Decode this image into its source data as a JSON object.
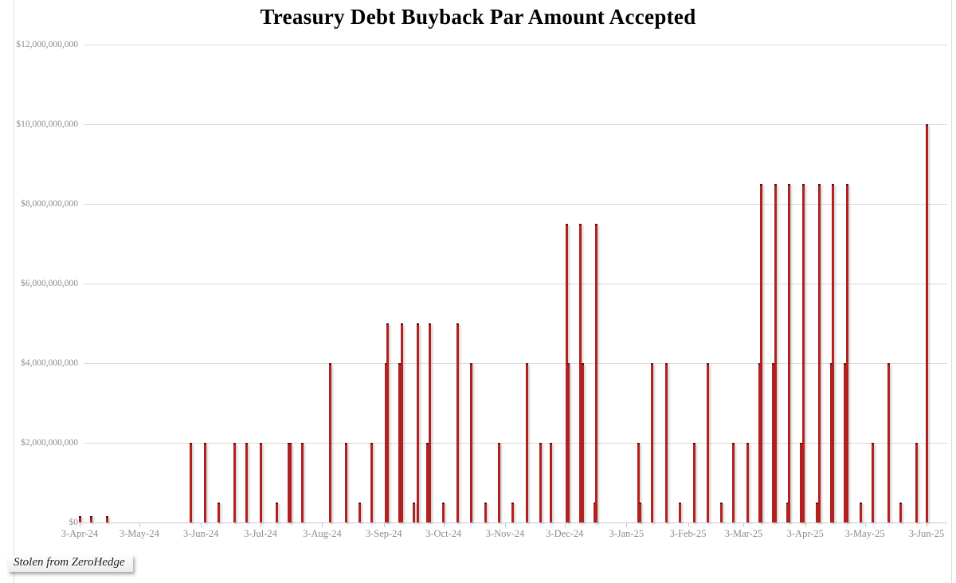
{
  "title": "Treasury Debt Buyback Par Amount Accepted",
  "watermark": {
    "text": "Stolen from ZeroHedge"
  },
  "chart_data": {
    "type": "bar",
    "title": "Treasury Debt Buyback Par Amount Accepted",
    "xlabel": "",
    "ylabel": "",
    "unit": "USD",
    "point_value_unit": "billions_usd",
    "ylim": [
      0,
      12000000000
    ],
    "ytick_interval": 2000000000,
    "grid": true,
    "legend_position": "none",
    "colors": {
      "bar_fill": "#B2201F",
      "bar_cap": "#5C0E10",
      "grid": "#D9D9D9",
      "axis_text": "#8C8C8C",
      "title_text": "#000000"
    },
    "ytick_labels": [
      "$12,000,000,000",
      "$10,000,000,000",
      "$8,000,000,000",
      "$6,000,000,000",
      "$4,000,000,000",
      "$2,000,000,000",
      "$0"
    ],
    "xticks": [
      {
        "label": "3-Apr-24",
        "date": "2024-04-03"
      },
      {
        "label": "3-May-24",
        "date": "2024-05-03"
      },
      {
        "label": "3-Jun-24",
        "date": "2024-06-03"
      },
      {
        "label": "3-Jul-24",
        "date": "2024-07-03"
      },
      {
        "label": "3-Aug-24",
        "date": "2024-08-03"
      },
      {
        "label": "3-Sep-24",
        "date": "2024-09-03"
      },
      {
        "label": "3-Oct-24",
        "date": "2024-10-03"
      },
      {
        "label": "3-Nov-24",
        "date": "2024-11-03"
      },
      {
        "label": "3-Dec-24",
        "date": "2024-12-03"
      },
      {
        "label": "3-Jan-25",
        "date": "2025-01-03"
      },
      {
        "label": "3-Feb-25",
        "date": "2025-02-03"
      },
      {
        "label": "3-Mar-25",
        "date": "2025-03-03"
      },
      {
        "label": "3-Apr-25",
        "date": "2025-04-03"
      },
      {
        "label": "3-May-25",
        "date": "2025-05-03"
      },
      {
        "label": "3-Jun-25",
        "date": "2025-06-03"
      }
    ],
    "series": [
      {
        "name": "Par Amount Accepted",
        "points": [
          {
            "date": "2024-04-03",
            "value_billions": 0.15
          },
          {
            "date": "2024-04-09",
            "value_billions": 0.15
          },
          {
            "date": "2024-04-17",
            "value_billions": 0.15
          },
          {
            "date": "2024-05-29",
            "value_billions": 2
          },
          {
            "date": "2024-06-05",
            "value_billions": 2
          },
          {
            "date": "2024-06-12",
            "value_billions": 0.5
          },
          {
            "date": "2024-06-20",
            "value_billions": 2
          },
          {
            "date": "2024-06-26",
            "value_billions": 2
          },
          {
            "date": "2024-07-03",
            "value_billions": 2
          },
          {
            "date": "2024-07-11",
            "value_billions": 0.5
          },
          {
            "date": "2024-07-17",
            "value_billions": 2
          },
          {
            "date": "2024-07-18",
            "value_billions": 2
          },
          {
            "date": "2024-07-24",
            "value_billions": 2
          },
          {
            "date": "2024-08-07",
            "value_billions": 4
          },
          {
            "date": "2024-08-15",
            "value_billions": 2
          },
          {
            "date": "2024-08-22",
            "value_billions": 0.5
          },
          {
            "date": "2024-08-28",
            "value_billions": 2
          },
          {
            "date": "2024-09-04",
            "value_billions": 4
          },
          {
            "date": "2024-09-05",
            "value_billions": 5
          },
          {
            "date": "2024-09-11",
            "value_billions": 4
          },
          {
            "date": "2024-09-12",
            "value_billions": 5
          },
          {
            "date": "2024-09-18",
            "value_billions": 0.5
          },
          {
            "date": "2024-09-20",
            "value_billions": 5
          },
          {
            "date": "2024-09-25",
            "value_billions": 2
          },
          {
            "date": "2024-09-26",
            "value_billions": 5
          },
          {
            "date": "2024-10-03",
            "value_billions": 0.5
          },
          {
            "date": "2024-10-10",
            "value_billions": 5
          },
          {
            "date": "2024-10-17",
            "value_billions": 4
          },
          {
            "date": "2024-10-24",
            "value_billions": 0.5
          },
          {
            "date": "2024-10-31",
            "value_billions": 2
          },
          {
            "date": "2024-11-07",
            "value_billions": 0.5
          },
          {
            "date": "2024-11-14",
            "value_billions": 4
          },
          {
            "date": "2024-11-21",
            "value_billions": 2
          },
          {
            "date": "2024-11-26",
            "value_billions": 2
          },
          {
            "date": "2024-12-04",
            "value_billions": 7.5
          },
          {
            "date": "2024-12-05",
            "value_billions": 4
          },
          {
            "date": "2024-12-11",
            "value_billions": 7.5
          },
          {
            "date": "2024-12-12",
            "value_billions": 4
          },
          {
            "date": "2024-12-18",
            "value_billions": 0.5
          },
          {
            "date": "2024-12-19",
            "value_billions": 7.5
          },
          {
            "date": "2025-01-09",
            "value_billions": 2
          },
          {
            "date": "2025-01-10",
            "value_billions": 0.5
          },
          {
            "date": "2025-01-16",
            "value_billions": 4
          },
          {
            "date": "2025-01-23",
            "value_billions": 4
          },
          {
            "date": "2025-01-30",
            "value_billions": 0.5
          },
          {
            "date": "2025-02-06",
            "value_billions": 2
          },
          {
            "date": "2025-02-13",
            "value_billions": 4
          },
          {
            "date": "2025-02-20",
            "value_billions": 0.5
          },
          {
            "date": "2025-02-26",
            "value_billions": 2
          },
          {
            "date": "2025-03-05",
            "value_billions": 2
          },
          {
            "date": "2025-03-11",
            "value_billions": 4
          },
          {
            "date": "2025-03-12",
            "value_billions": 8.5
          },
          {
            "date": "2025-03-18",
            "value_billions": 4
          },
          {
            "date": "2025-03-19",
            "value_billions": 8.5
          },
          {
            "date": "2025-03-25",
            "value_billions": 0.5
          },
          {
            "date": "2025-03-26",
            "value_billions": 8.5
          },
          {
            "date": "2025-04-01",
            "value_billions": 2
          },
          {
            "date": "2025-04-02",
            "value_billions": 8.5
          },
          {
            "date": "2025-04-09",
            "value_billions": 0.5
          },
          {
            "date": "2025-04-10",
            "value_billions": 8.5
          },
          {
            "date": "2025-04-16",
            "value_billions": 4
          },
          {
            "date": "2025-04-17",
            "value_billions": 8.5
          },
          {
            "date": "2025-04-23",
            "value_billions": 4
          },
          {
            "date": "2025-04-24",
            "value_billions": 8.5
          },
          {
            "date": "2025-05-01",
            "value_billions": 0.5
          },
          {
            "date": "2025-05-07",
            "value_billions": 2
          },
          {
            "date": "2025-05-15",
            "value_billions": 4
          },
          {
            "date": "2025-05-21",
            "value_billions": 0.5
          },
          {
            "date": "2025-05-29",
            "value_billions": 2
          },
          {
            "date": "2025-06-03",
            "value_billions": 10
          }
        ]
      }
    ]
  }
}
